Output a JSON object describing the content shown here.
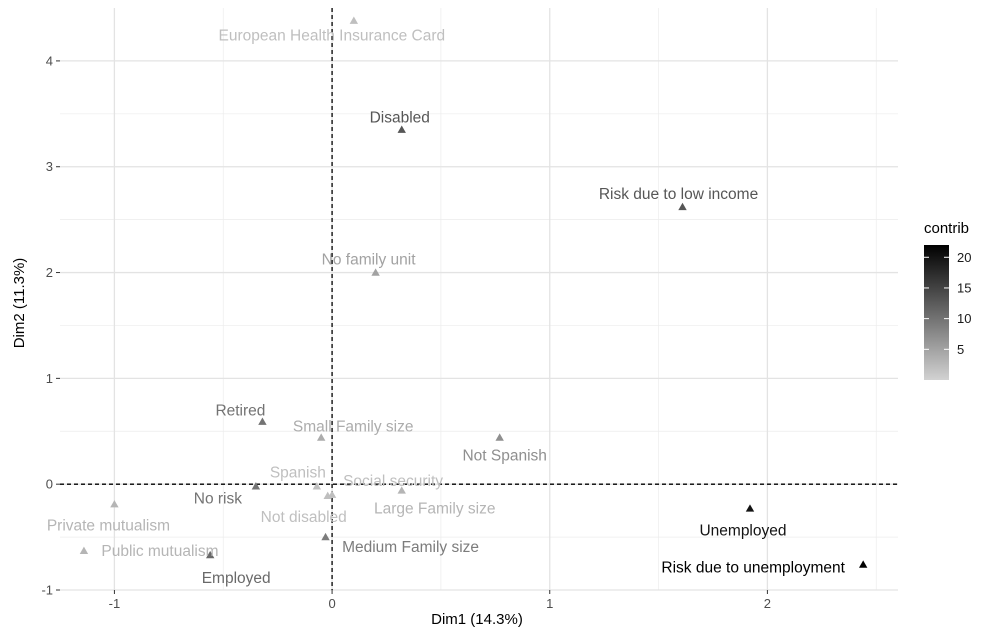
{
  "chart_data": {
    "type": "scatter",
    "title": "",
    "xlabel": "Dim1 (14.3%)",
    "ylabel": "Dim2 (11.3%)",
    "xlim": [
      -1.25,
      2.6
    ],
    "ylim": [
      -1.0,
      4.5
    ],
    "x_ticks": [
      -1,
      0,
      1,
      2
    ],
    "y_ticks": [
      -1,
      0,
      1,
      2,
      3,
      4
    ],
    "x_tick_labels": [
      "-1",
      "0",
      "1",
      "2"
    ],
    "y_tick_labels": [
      "-1",
      "0",
      "1",
      "2",
      "3",
      "4"
    ],
    "reference_lines": {
      "x": 0,
      "y": 0,
      "style": "dashed"
    },
    "grid": true,
    "marker": "triangle",
    "legend": {
      "title": "contrib",
      "placement": "right",
      "type": "colorbar",
      "range": [
        0,
        22
      ],
      "ticks": [
        5,
        10,
        15,
        20
      ],
      "tick_labels": [
        "5",
        "10",
        "15",
        "20"
      ],
      "color_low": "#d2d2d2",
      "color_high": "#000000"
    },
    "points": [
      {
        "label": "European Health Insurance Card",
        "x": 0.1,
        "y": 4.38,
        "contrib": 2
      },
      {
        "label": "Disabled",
        "x": 0.32,
        "y": 3.35,
        "contrib": 13
      },
      {
        "label": "Risk due to low income",
        "x": 1.61,
        "y": 2.62,
        "contrib": 13
      },
      {
        "label": "No family unit",
        "x": 0.2,
        "y": 2.0,
        "contrib": 5
      },
      {
        "label": "Retired",
        "x": -0.32,
        "y": 0.59,
        "contrib": 10
      },
      {
        "label": "Small Family size",
        "x": -0.05,
        "y": 0.44,
        "contrib": 4
      },
      {
        "label": "Not Spanish",
        "x": 0.77,
        "y": 0.44,
        "contrib": 7
      },
      {
        "label": "Spanish",
        "x": -0.07,
        "y": -0.02,
        "contrib": 2
      },
      {
        "label": "Social security",
        "x": 0.0,
        "y": -0.1,
        "contrib": 2
      },
      {
        "label": "No risk",
        "x": -0.35,
        "y": -0.02,
        "contrib": 10
      },
      {
        "label": "Not disabled",
        "x": -0.02,
        "y": -0.11,
        "contrib": 2
      },
      {
        "label": "Large Family size",
        "x": 0.32,
        "y": -0.06,
        "contrib": 3
      },
      {
        "label": "Private mutualism",
        "x": -1.0,
        "y": -0.19,
        "contrib": 3
      },
      {
        "label": "Public mutualism",
        "x": -1.14,
        "y": -0.63,
        "contrib": 3
      },
      {
        "label": "Employed",
        "x": -0.56,
        "y": -0.67,
        "contrib": 11
      },
      {
        "label": "Medium Family size",
        "x": -0.03,
        "y": -0.5,
        "contrib": 9
      },
      {
        "label": "Unemployed",
        "x": 1.92,
        "y": -0.23,
        "contrib": 20
      },
      {
        "label": "Risk due to unemployment",
        "x": 2.44,
        "y": -0.76,
        "contrib": 22
      }
    ]
  }
}
